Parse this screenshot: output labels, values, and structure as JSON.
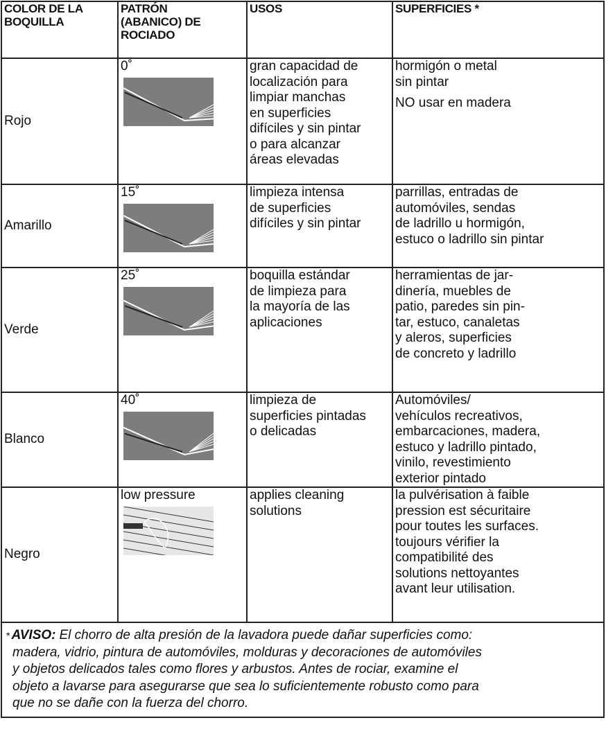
{
  "table": {
    "header": [
      [
        "COLOR DE LA",
        "BOQUILLA"
      ],
      [
        "PATRÓN",
        "(ABANICO) DE",
        "ROCIADO"
      ],
      [
        "USOS"
      ],
      [
        "SUPERFICIES *"
      ]
    ],
    "rows": [
      {
        "color": "Rojo",
        "pattern": "0˚",
        "uses": [
          "gran capacidad de",
          "localización para",
          "limpiar manchas",
          "en superficies",
          "difíciles y sin pintar",
          "o para alcanzar",
          "áreas elevadas"
        ],
        "surfaces": [
          "hormigón o metal",
          "sin pintar",
          "NO usar en madera"
        ]
      },
      {
        "color": "Amarillo",
        "pattern": "15˚",
        "uses": [
          "limpieza intensa",
          "de superficies",
          "difíciles y sin pintar"
        ],
        "surfaces": [
          "parrillas, entradas de",
          "automóviles, sendas",
          "de ladrillo u hormigón,",
          "estuco o ladrillo sin pintar"
        ]
      },
      {
        "color": "Verde",
        "pattern": "25˚",
        "uses": [
          "boquilla estándar",
          "de limpieza para",
          "la mayoría de las",
          "aplicaciones"
        ],
        "surfaces": [
          "herramientas de jar-",
          "dinería, muebles de",
          "patio, paredes sin pin-",
          "tar, estuco, canaletas",
          "y aleros, superficies",
          "de concreto y ladrillo"
        ]
      },
      {
        "color": "Blanco",
        "pattern": "40˚",
        "uses": [
          "limpieza de",
          "superficies pintadas",
          "o delicadas"
        ],
        "surfaces": [
          "Automóviles/",
          "vehículos recreativos,",
          "embarcaciones, madera,",
          "estuco y ladrillo pintado,",
          "vinilo, revestimiento",
          "exterior pintado"
        ]
      },
      {
        "color": "Negro",
        "pattern": "low pressure",
        "uses": [
          "applies cleaning",
          "solutions"
        ],
        "surfaces": [
          "la pulvérisation à faible",
          "pression est sécuritaire",
          "pour toutes les surfaces.",
          "toujours vérifier la",
          "compatibilité des",
          "solutions nettoyantes",
          "avant leur utilisation."
        ]
      }
    ]
  },
  "footnote": {
    "marker": "*",
    "label": "AVISO:",
    "lines": [
      "El chorro de alta presión de la lavadora puede dañar superficies como:",
      "madera, vidrio, pintura de automóviles, molduras y decoraciones de automóviles",
      "y objetos delicados tales como flores y arbustos.  Antes de rociar, examine el",
      "objeto a lavarse para asegurarse que sea lo suficientemente robusto como para",
      "que no se dañe con la fuerza del chorro."
    ]
  }
}
